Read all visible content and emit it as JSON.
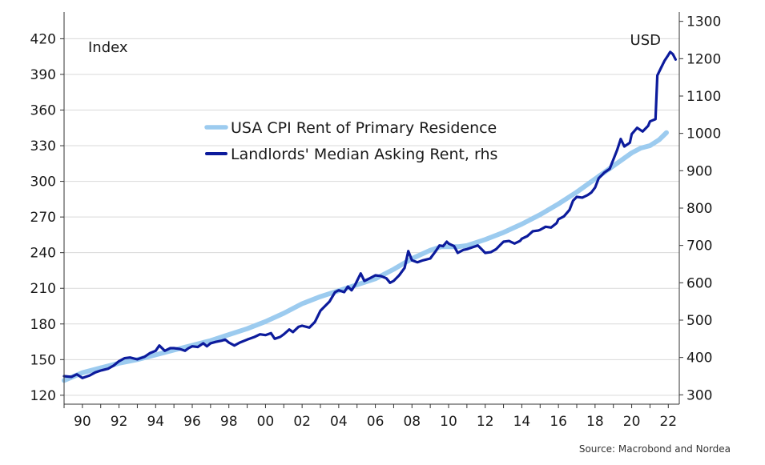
{
  "chart_data": {
    "type": "line",
    "left_axis_title": "Index",
    "right_axis_title": "USD",
    "source": "Source: Macrobond and Nordea",
    "grid": true,
    "legend_position": "center",
    "x_range": [
      1989.0,
      2022.6
    ],
    "x_ticks": [
      {
        "year": 1990,
        "label": "90"
      },
      {
        "year": 1992,
        "label": "92"
      },
      {
        "year": 1994,
        "label": "94"
      },
      {
        "year": 1996,
        "label": "96"
      },
      {
        "year": 1998,
        "label": "98"
      },
      {
        "year": 2000,
        "label": "00"
      },
      {
        "year": 2002,
        "label": "02"
      },
      {
        "year": 2004,
        "label": "04"
      },
      {
        "year": 2006,
        "label": "06"
      },
      {
        "year": 2008,
        "label": "08"
      },
      {
        "year": 2010,
        "label": "10"
      },
      {
        "year": 2012,
        "label": "12"
      },
      {
        "year": 2014,
        "label": "14"
      },
      {
        "year": 2016,
        "label": "16"
      },
      {
        "year": 2018,
        "label": "18"
      },
      {
        "year": 2020,
        "label": "20"
      },
      {
        "year": 2022,
        "label": "22"
      }
    ],
    "left_axis": {
      "range": [
        112.5,
        442.5
      ],
      "ticks": [
        "120",
        "150",
        "180",
        "210",
        "240",
        "270",
        "300",
        "330",
        "360",
        "390",
        "420"
      ]
    },
    "right_axis": {
      "range": [
        275,
        1325
      ],
      "ticks": [
        "300",
        "400",
        "500",
        "600",
        "700",
        "800",
        "900",
        "1000",
        "1100",
        "1200",
        "1300"
      ]
    },
    "series": [
      {
        "name": "USA CPI Rent of Primary Residence",
        "axis": "left",
        "color": "#9ccbef",
        "points": [
          [
            1989.0,
            132.5
          ],
          [
            1990.0,
            139
          ],
          [
            1991.0,
            143
          ],
          [
            1992.0,
            147
          ],
          [
            1993.0,
            150
          ],
          [
            1994.0,
            154
          ],
          [
            1995.0,
            158
          ],
          [
            1996.0,
            162
          ],
          [
            1997.0,
            166
          ],
          [
            1998.0,
            171
          ],
          [
            1999.0,
            176
          ],
          [
            2000.0,
            182
          ],
          [
            2001.0,
            189
          ],
          [
            2002.0,
            197
          ],
          [
            2003.0,
            203
          ],
          [
            2004.0,
            208
          ],
          [
            2005.0,
            213
          ],
          [
            2006.0,
            218
          ],
          [
            2007.0,
            226
          ],
          [
            2008.0,
            235
          ],
          [
            2009.0,
            242
          ],
          [
            2009.6,
            245
          ],
          [
            2010.0,
            245
          ],
          [
            2010.5,
            245
          ],
          [
            2011.0,
            246
          ],
          [
            2012.0,
            251
          ],
          [
            2013.0,
            257
          ],
          [
            2014.0,
            264
          ],
          [
            2015.0,
            272
          ],
          [
            2016.0,
            281
          ],
          [
            2017.0,
            291
          ],
          [
            2018.0,
            302
          ],
          [
            2019.0,
            313
          ],
          [
            2020.0,
            324
          ],
          [
            2020.5,
            328
          ],
          [
            2021.0,
            330
          ],
          [
            2021.5,
            335
          ],
          [
            2021.9,
            341
          ]
        ]
      },
      {
        "name": "Landlords' Median Asking Rent, rhs",
        "axis": "right",
        "color": "#0c1b9c",
        "points": [
          [
            1989.0,
            350
          ],
          [
            1989.4,
            348
          ],
          [
            1989.7,
            355
          ],
          [
            1990.0,
            345
          ],
          [
            1990.4,
            352
          ],
          [
            1990.7,
            360
          ],
          [
            1991.0,
            365
          ],
          [
            1991.4,
            370
          ],
          [
            1991.7,
            378
          ],
          [
            1992.0,
            390
          ],
          [
            1992.3,
            398
          ],
          [
            1992.6,
            400
          ],
          [
            1993.0,
            395
          ],
          [
            1993.4,
            402
          ],
          [
            1993.7,
            412
          ],
          [
            1994.0,
            418
          ],
          [
            1994.2,
            432
          ],
          [
            1994.5,
            418
          ],
          [
            1994.8,
            425
          ],
          [
            1995.0,
            425
          ],
          [
            1995.3,
            423
          ],
          [
            1995.6,
            418
          ],
          [
            1995.8,
            425
          ],
          [
            1996.0,
            430
          ],
          [
            1996.3,
            428
          ],
          [
            1996.6,
            438
          ],
          [
            1996.8,
            430
          ],
          [
            1997.0,
            438
          ],
          [
            1997.3,
            442
          ],
          [
            1997.6,
            445
          ],
          [
            1997.8,
            448
          ],
          [
            1998.0,
            440
          ],
          [
            1998.3,
            432
          ],
          [
            1998.6,
            440
          ],
          [
            1999.0,
            448
          ],
          [
            1999.4,
            455
          ],
          [
            1999.7,
            462
          ],
          [
            2000.0,
            460
          ],
          [
            2000.3,
            465
          ],
          [
            2000.5,
            450
          ],
          [
            2000.8,
            455
          ],
          [
            2001.0,
            462
          ],
          [
            2001.3,
            475
          ],
          [
            2001.5,
            468
          ],
          [
            2001.8,
            482
          ],
          [
            2002.0,
            485
          ],
          [
            2002.4,
            480
          ],
          [
            2002.7,
            495
          ],
          [
            2003.0,
            525
          ],
          [
            2003.5,
            550
          ],
          [
            2003.8,
            575
          ],
          [
            2004.0,
            580
          ],
          [
            2004.3,
            575
          ],
          [
            2004.5,
            590
          ],
          [
            2004.7,
            580
          ],
          [
            2004.9,
            595
          ],
          [
            2005.0,
            605
          ],
          [
            2005.2,
            625
          ],
          [
            2005.4,
            605
          ],
          [
            2005.7,
            612
          ],
          [
            2006.0,
            620
          ],
          [
            2006.3,
            618
          ],
          [
            2006.6,
            612
          ],
          [
            2006.8,
            600
          ],
          [
            2007.0,
            605
          ],
          [
            2007.3,
            620
          ],
          [
            2007.6,
            640
          ],
          [
            2007.8,
            685
          ],
          [
            2008.0,
            660
          ],
          [
            2008.3,
            655
          ],
          [
            2008.6,
            660
          ],
          [
            2009.0,
            665
          ],
          [
            2009.3,
            685
          ],
          [
            2009.5,
            700
          ],
          [
            2009.7,
            698
          ],
          [
            2009.9,
            710
          ],
          [
            2010.0,
            705
          ],
          [
            2010.3,
            698
          ],
          [
            2010.5,
            680
          ],
          [
            2010.8,
            688
          ],
          [
            2011.0,
            690
          ],
          [
            2011.3,
            695
          ],
          [
            2011.6,
            700
          ],
          [
            2011.8,
            690
          ],
          [
            2012.0,
            680
          ],
          [
            2012.3,
            682
          ],
          [
            2012.6,
            690
          ],
          [
            2012.9,
            705
          ],
          [
            2013.0,
            710
          ],
          [
            2013.3,
            712
          ],
          [
            2013.6,
            705
          ],
          [
            2013.9,
            712
          ],
          [
            2014.0,
            718
          ],
          [
            2014.3,
            725
          ],
          [
            2014.6,
            738
          ],
          [
            2014.9,
            740
          ],
          [
            2015.0,
            742
          ],
          [
            2015.3,
            750
          ],
          [
            2015.6,
            748
          ],
          [
            2015.9,
            760
          ],
          [
            2016.0,
            770
          ],
          [
            2016.3,
            778
          ],
          [
            2016.6,
            795
          ],
          [
            2016.8,
            820
          ],
          [
            2017.0,
            830
          ],
          [
            2017.3,
            828
          ],
          [
            2017.6,
            835
          ],
          [
            2017.8,
            842
          ],
          [
            2018.0,
            855
          ],
          [
            2018.2,
            880
          ],
          [
            2018.5,
            895
          ],
          [
            2018.8,
            905
          ],
          [
            2019.0,
            930
          ],
          [
            2019.2,
            955
          ],
          [
            2019.4,
            985
          ],
          [
            2019.6,
            965
          ],
          [
            2019.9,
            975
          ],
          [
            2020.0,
            998
          ],
          [
            2020.3,
            1015
          ],
          [
            2020.6,
            1005
          ],
          [
            2020.9,
            1020
          ],
          [
            2021.0,
            1032
          ],
          [
            2021.3,
            1038
          ],
          [
            2021.4,
            1155
          ],
          [
            2021.6,
            1175
          ],
          [
            2021.8,
            1195
          ],
          [
            2022.0,
            1210
          ],
          [
            2022.1,
            1218
          ],
          [
            2022.25,
            1212
          ],
          [
            2022.4,
            1198
          ]
        ]
      }
    ]
  }
}
